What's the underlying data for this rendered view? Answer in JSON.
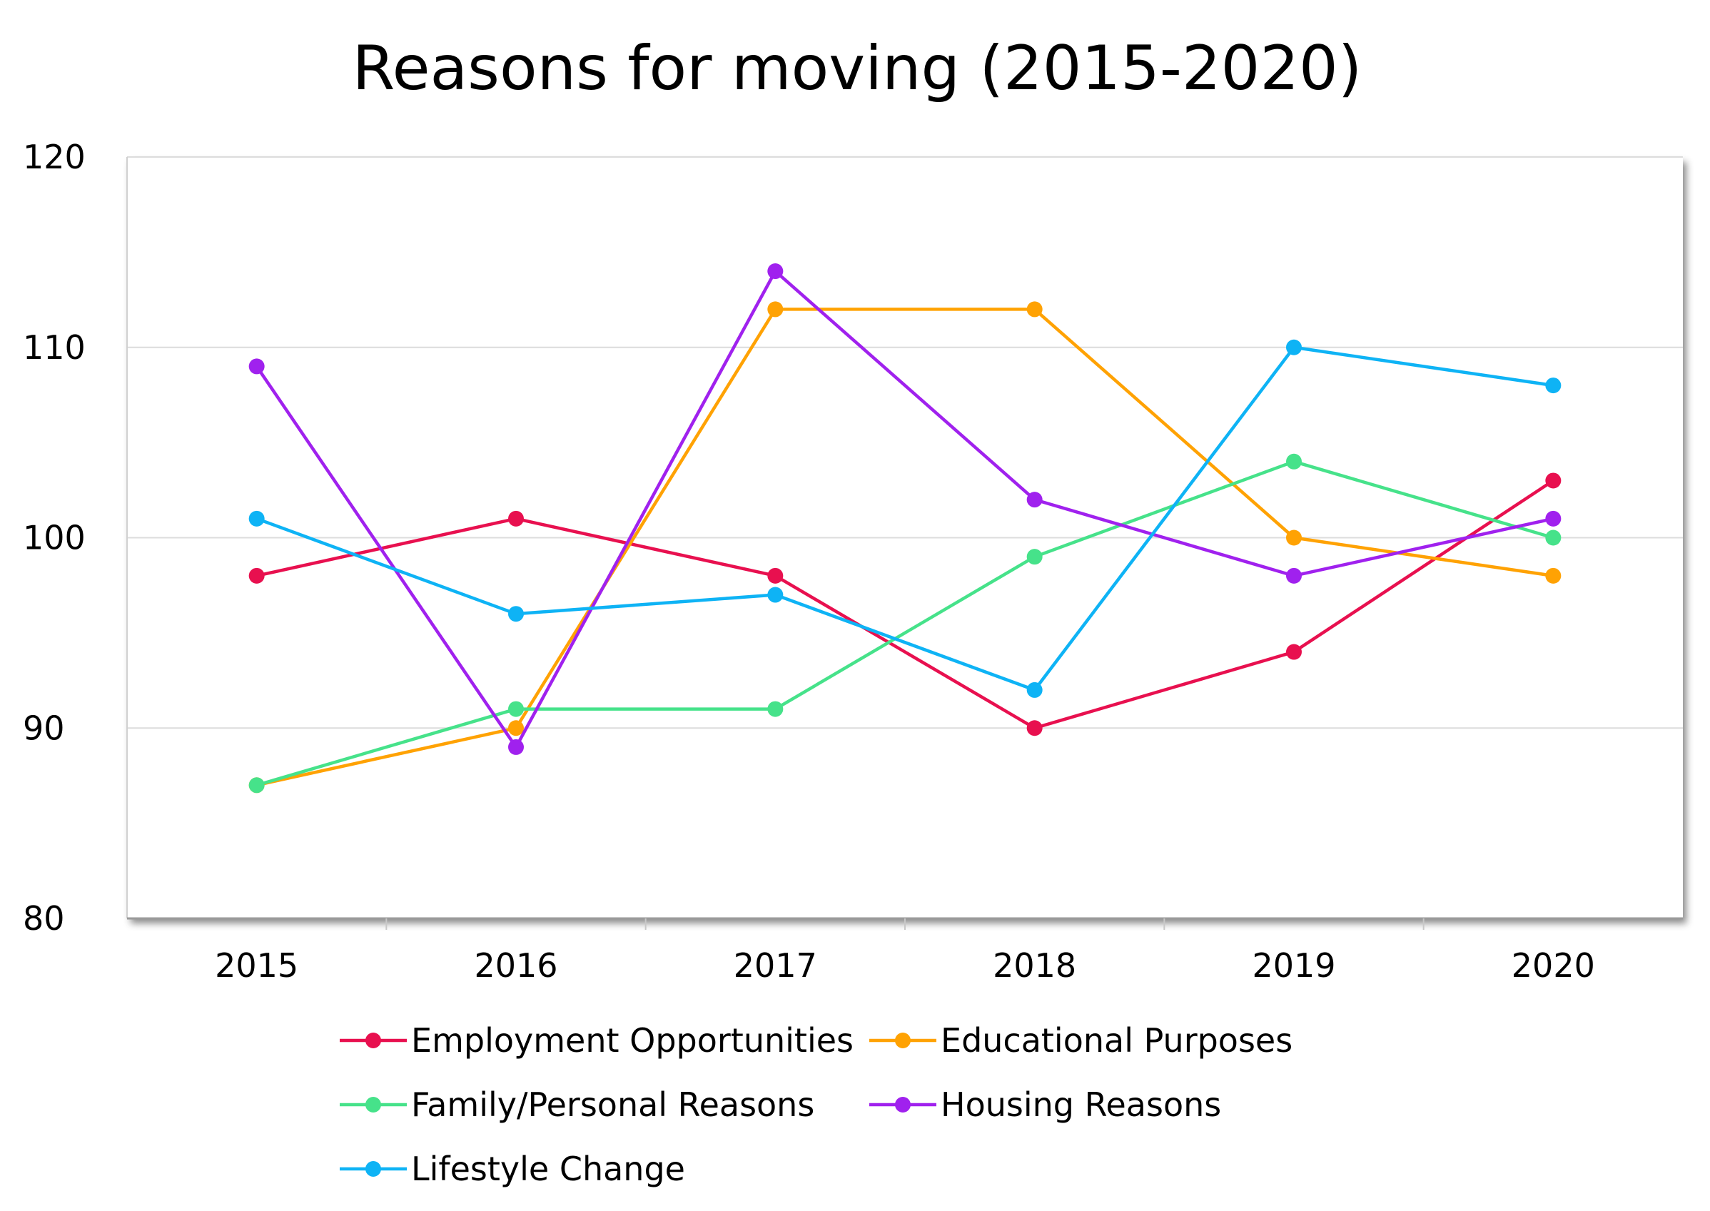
{
  "chart_data": {
    "type": "line",
    "title": "Reasons for moving (2015-2020)",
    "xlabel": "",
    "ylabel": "",
    "categories": [
      "2015",
      "2016",
      "2017",
      "2018",
      "2019",
      "2020"
    ],
    "ylim": [
      80,
      120
    ],
    "yticks": [
      80,
      90,
      100,
      110,
      120
    ],
    "grid": true,
    "legend_position": "bottom",
    "series": [
      {
        "name": "Employment Opportunities",
        "color": "#E8104F",
        "values": [
          98,
          101,
          98,
          90,
          94,
          103
        ]
      },
      {
        "name": "Educational Purposes",
        "color": "#FFA203",
        "values": [
          87,
          90,
          112,
          112,
          100,
          98
        ]
      },
      {
        "name": "Family/Personal Reasons",
        "color": "#46E28A",
        "values": [
          87,
          91,
          91,
          99,
          104,
          100
        ]
      },
      {
        "name": "Housing Reasons",
        "color": "#A021EE",
        "values": [
          109,
          89,
          114,
          102,
          98,
          101
        ]
      },
      {
        "name": "Lifestyle Change",
        "color": "#0EB3F5",
        "values": [
          101,
          96,
          97,
          92,
          110,
          108
        ]
      }
    ]
  }
}
